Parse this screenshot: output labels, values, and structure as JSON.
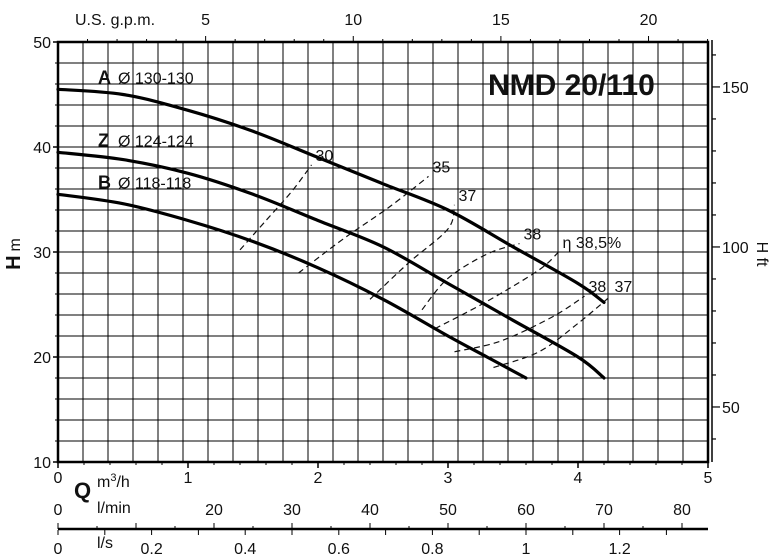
{
  "chart_data": {
    "type": "line",
    "title": "NMD 20/110",
    "x_primary": {
      "name": "Q",
      "unit": "m³/h",
      "range": [
        0,
        5
      ],
      "ticks": [
        "0",
        "1",
        "2",
        "3",
        "4",
        "5"
      ]
    },
    "x_top": {
      "label": "U.S. g.p.m.",
      "ticks": [
        "5",
        "10",
        "15",
        "20"
      ]
    },
    "x_lmin": {
      "label": "l/min",
      "ticks": [
        "0",
        "20",
        "30",
        "40",
        "50",
        "60",
        "70",
        "80"
      ]
    },
    "x_ls": {
      "label": "l/s",
      "ticks": [
        "0",
        "0.2",
        "0.4",
        "0.6",
        "0.8",
        "1",
        "1.2"
      ]
    },
    "y_left": {
      "label_bold": "H",
      "label_unit": "m",
      "range": [
        10,
        50
      ],
      "ticks": [
        "10",
        "20",
        "30",
        "40",
        "50"
      ]
    },
    "y_right": {
      "label": "H ft",
      "ticks": [
        "50",
        "100",
        "150"
      ]
    },
    "grid": true,
    "series": [
      {
        "name": "A",
        "diameter": "Ø 130-130",
        "points": [
          [
            0,
            45.5
          ],
          [
            0.5,
            45
          ],
          [
            1,
            43.5
          ],
          [
            1.5,
            41.5
          ],
          [
            2,
            39
          ],
          [
            2.5,
            36.5
          ],
          [
            3,
            34
          ],
          [
            3.5,
            30.5
          ],
          [
            4,
            27
          ],
          [
            4.2,
            25.2
          ]
        ]
      },
      {
        "name": "Z",
        "diameter": "Ø 124-124",
        "points": [
          [
            0,
            39.5
          ],
          [
            0.5,
            38.8
          ],
          [
            1,
            37.5
          ],
          [
            1.5,
            35.5
          ],
          [
            2,
            33
          ],
          [
            2.5,
            30.5
          ],
          [
            3,
            27
          ],
          [
            3.5,
            23.5
          ],
          [
            4,
            20
          ],
          [
            4.2,
            18
          ]
        ]
      },
      {
        "name": "B",
        "diameter": "Ø 118-118",
        "points": [
          [
            0,
            35.5
          ],
          [
            0.5,
            34.6
          ],
          [
            1,
            33
          ],
          [
            1.5,
            31
          ],
          [
            2,
            28.5
          ],
          [
            2.5,
            25.5
          ],
          [
            3,
            22
          ],
          [
            3.3,
            20
          ],
          [
            3.6,
            18
          ]
        ]
      }
    ],
    "efficiency": {
      "symbol": "η",
      "curves": [
        {
          "label": "30",
          "points": [
            [
              1.4,
              30.2
            ],
            [
              1.6,
              33
            ],
            [
              1.8,
              35.8
            ],
            [
              1.95,
              38.3
            ]
          ]
        },
        {
          "label": "35",
          "points": [
            [
              1.85,
              28
            ],
            [
              2.2,
              31.3
            ],
            [
              2.55,
              34.3
            ],
            [
              2.85,
              37.2
            ]
          ]
        },
        {
          "label": "37",
          "points": [
            [
              2.4,
              25.5
            ],
            [
              2.7,
              29
            ],
            [
              3,
              32.2
            ],
            [
              3.05,
              34.5
            ]
          ]
        },
        {
          "label": "38",
          "points": [
            [
              2.8,
              24.5
            ],
            [
              3,
              27.5
            ],
            [
              3.3,
              29.8
            ],
            [
              3.55,
              30.8
            ]
          ]
        },
        {
          "label": "38,5%",
          "points": [
            [
              2.9,
              22.7
            ],
            [
              3.3,
              25.3
            ],
            [
              3.7,
              28.3
            ],
            [
              3.85,
              30
            ]
          ]
        },
        {
          "label": "38",
          "points": [
            [
              3.05,
              20.5
            ],
            [
              3.4,
              21.5
            ],
            [
              3.8,
              23.8
            ],
            [
              4.05,
              25.8
            ]
          ]
        },
        {
          "label": "37",
          "points": [
            [
              3.35,
              19
            ],
            [
              3.7,
              20.5
            ],
            [
              4,
              23.2
            ],
            [
              4.25,
              25.8
            ]
          ]
        }
      ]
    }
  }
}
